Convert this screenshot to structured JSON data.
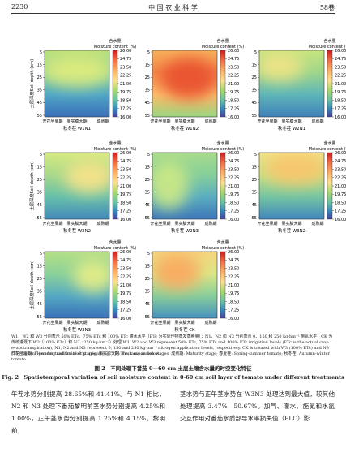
{
  "header": {
    "page": "2230",
    "journal": "中 国 农 业 科 学",
    "volume": "58卷"
  },
  "figure": {
    "colorbar_title_zh": "含水量",
    "colorbar_title_en": "Moisture content (%)",
    "colorbar_ticks": [
      "26.00",
      "24.75",
      "23.50",
      "22.25",
      "21.00",
      "19.75",
      "18.50",
      "17.25",
      "16.00"
    ],
    "y_axis_label": "土层深度Soil depth (cm)",
    "y_ticks": [
      "5",
      "15",
      "25",
      "35",
      "45",
      "55"
    ],
    "x_categories": [
      "开花坐果期",
      "果实膨大期",
      "成熟期"
    ],
    "panels": [
      "秋冬茬 W1N1",
      "秋冬茬 W1N2",
      "秋冬茬 W2N1",
      "秋冬茬 W2N2",
      "秋冬茬 W2N3",
      "秋冬茬 W3N2",
      "秋冬茬 W3N3",
      "秋冬茬 CK"
    ]
  },
  "notes": [
    "W1、W2 和 W3 分别表示 50% ETc、75% ETc 和 100% ETc 灌水水平（ETc 为实际作物蒸发蒸腾量）；N1、N2 和 N3 分别表示 0、150 和 250 kg·hm⁻² 施氮水平；CK 为传统灌溉下 W3（100% ETc）和 N3（250 kg·hm⁻²）处理 W1, W2 and W3 represent 50% ETc, 75% ETc and 100% ETc irrigation levels (ETc is the actual crop evapotranspiration), N1, N2 and N3 represent 0, 150 and 250 kg·hm⁻² nitrogen application levels, respectively. CK is treated with W3 (100% ETc) and N3 (250 kg·hm⁻²) under traditional drip irrigation。下同 The same as below",
    "开花坐果期: Flowering and fruit-set stages; 果实膨大期: Fruit expansion stages; 成熟期: Maturity stage; 春夏茬: Spring-summer tomato; 秋冬茬: Autumn-winter tomato"
  ],
  "caption_zh": "图 2　不同处理下番茄 0—60 cm 土层土壤含水量的时空变化特征",
  "caption_en": "Fig. 2　Spatiotemporal variation of soil moisture content in 0-60 cm soil layer of tomato under different treatments",
  "body": {
    "left": "午茬水势分别提高 28.65%和 41.41%。与 N1 相比，N2 和 N3 处理下番茄黎明前茎水势分别提高 4.25%和 1.00%，正午茎水势分别提高 1.25%和 4.15%。黎明前",
    "right": "茎水势与正午茎水势在 W3N3 处理达到最大值，较其他处理提高 3.47%—50.67%。加气、灌水、施氮和水氮交互作用对番茄水质部导水率损失值（PLC）影"
  }
}
